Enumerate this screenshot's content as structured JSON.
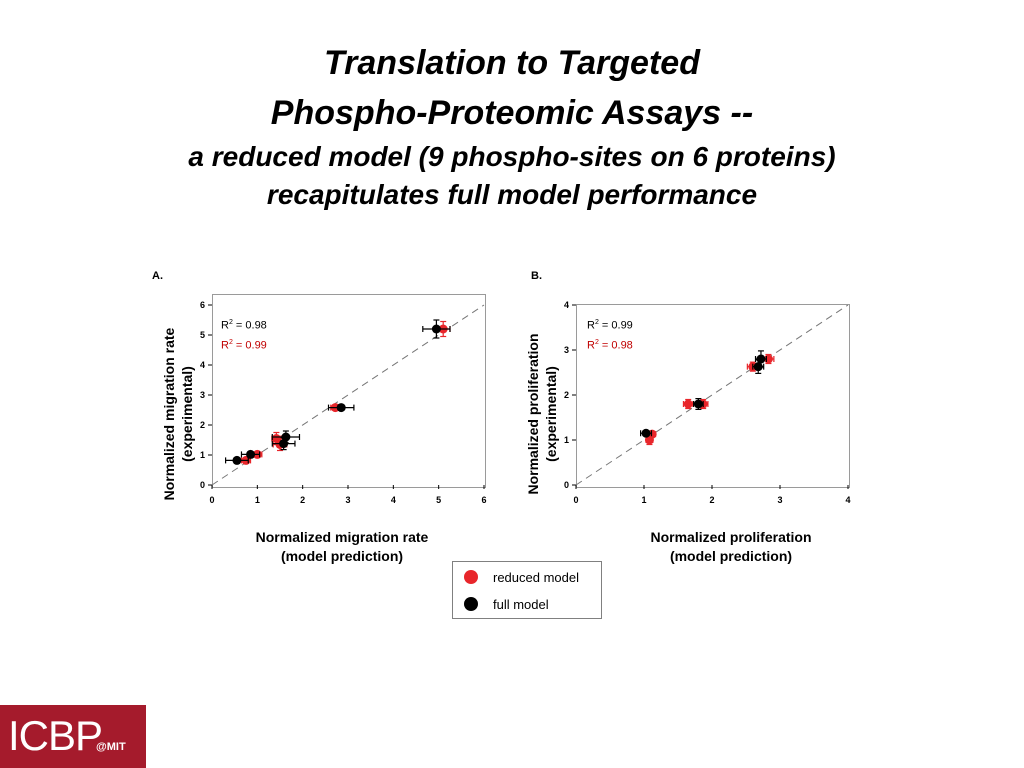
{
  "slide": {
    "title_line1": "Translation to Targeted",
    "title_line2": "Phospho-Proteomic Assays --",
    "subtitle_line1": "a reduced model (9 phospho-sites on 6 proteins)",
    "subtitle_line2": "recapitulates full model performance"
  },
  "legend": {
    "reduced_label": "reduced model",
    "full_label": "full model"
  },
  "logo": {
    "text": "ICBP",
    "suffix": "@MIT"
  },
  "colors": {
    "reduced": "#e8262b",
    "full": "#000000",
    "r2_reduced_text": "#c00000",
    "logo_bg": "#a51b2c"
  },
  "chart_data": [
    {
      "panel": "A.",
      "type": "scatter",
      "xlabel_line1": "Normalized migration rate",
      "xlabel_line2": "(model prediction)",
      "ylabel_line1": "Normalized migration rate",
      "ylabel_line2": "(experimental)",
      "xlim": [
        0,
        6
      ],
      "ylim": [
        0,
        6
      ],
      "xticks": [
        0,
        1,
        2,
        3,
        4,
        5,
        6
      ],
      "yticks": [
        0,
        1,
        2,
        3,
        4,
        5,
        6
      ],
      "r2_full": {
        "prefix": "R",
        "exp": "2",
        "suffix": " = 0.98"
      },
      "r2_reduced": {
        "prefix": "R",
        "exp": "2",
        "suffix": " = 0.99"
      },
      "diagonal": true,
      "series": [
        {
          "name": "reduced model",
          "points": [
            {
              "x": 0.75,
              "y": 0.82,
              "xerr": 0.1,
              "yerr": 0.05
            },
            {
              "x": 1.0,
              "y": 1.02,
              "xerr": 0.1,
              "yerr": 0.05
            },
            {
              "x": 1.42,
              "y": 1.55,
              "xerr": 0.1,
              "yerr": 0.2
            },
            {
              "x": 1.5,
              "y": 1.35,
              "xerr": 0.15,
              "yerr": 0.2
            },
            {
              "x": 2.72,
              "y": 2.58,
              "xerr": 0.1,
              "yerr": 0.05
            },
            {
              "x": 5.1,
              "y": 5.2,
              "xerr": 0.15,
              "yerr": 0.25
            }
          ]
        },
        {
          "name": "full model",
          "points": [
            {
              "x": 0.55,
              "y": 0.82,
              "xerr": 0.25,
              "yerr": 0.05
            },
            {
              "x": 0.85,
              "y": 1.02,
              "xerr": 0.2,
              "yerr": 0.05
            },
            {
              "x": 1.58,
              "y": 1.38,
              "xerr": 0.25,
              "yerr": 0.2
            },
            {
              "x": 1.63,
              "y": 1.6,
              "xerr": 0.3,
              "yerr": 0.2
            },
            {
              "x": 2.85,
              "y": 2.58,
              "xerr": 0.28,
              "yerr": 0.05
            },
            {
              "x": 4.95,
              "y": 5.2,
              "xerr": 0.3,
              "yerr": 0.3
            }
          ]
        }
      ]
    },
    {
      "panel": "B.",
      "type": "scatter",
      "xlabel_line1": "Normalized proliferation",
      "xlabel_line2": "(model prediction)",
      "ylabel_line1": "Normalized proliferation",
      "ylabel_line2": "(experimental)",
      "xlim": [
        0,
        4
      ],
      "ylim": [
        0,
        4
      ],
      "xticks": [
        0,
        1,
        2,
        3,
        4
      ],
      "yticks": [
        0,
        1,
        2,
        3,
        4
      ],
      "r2_full": {
        "prefix": "R",
        "exp": "2",
        "suffix": " = 0.99"
      },
      "r2_reduced": {
        "prefix": "R",
        "exp": "2",
        "suffix": " = 0.98"
      },
      "diagonal": true,
      "series": [
        {
          "name": "reduced model",
          "points": [
            {
              "x": 1.08,
              "y": 1.0,
              "xerr": 0.05,
              "yerr": 0.1
            },
            {
              "x": 1.12,
              "y": 1.13,
              "xerr": 0.05,
              "yerr": 0.05
            },
            {
              "x": 1.65,
              "y": 1.8,
              "xerr": 0.07,
              "yerr": 0.1
            },
            {
              "x": 1.87,
              "y": 1.8,
              "xerr": 0.07,
              "yerr": 0.1
            },
            {
              "x": 2.6,
              "y": 2.63,
              "xerr": 0.08,
              "yerr": 0.1
            },
            {
              "x": 2.83,
              "y": 2.8,
              "xerr": 0.08,
              "yerr": 0.1
            }
          ]
        },
        {
          "name": "full model",
          "points": [
            {
              "x": 1.03,
              "y": 1.15,
              "xerr": 0.08,
              "yerr": 0.05
            },
            {
              "x": 1.8,
              "y": 1.8,
              "xerr": 0.07,
              "yerr": 0.12
            },
            {
              "x": 2.68,
              "y": 2.63,
              "xerr": 0.08,
              "yerr": 0.15
            },
            {
              "x": 2.72,
              "y": 2.8,
              "xerr": 0.08,
              "yerr": 0.18
            }
          ]
        }
      ]
    }
  ]
}
